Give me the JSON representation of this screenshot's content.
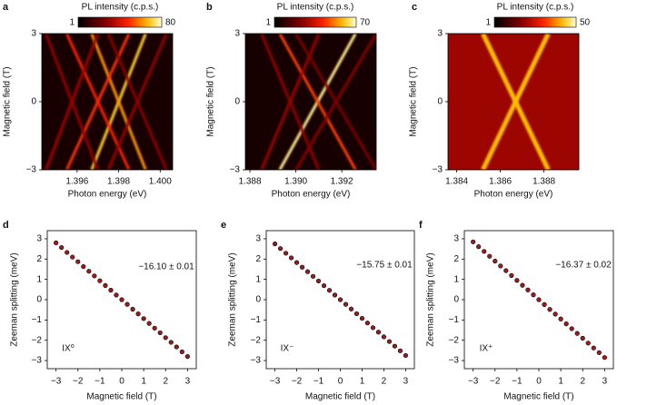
{
  "chart_data": [
    {
      "type": "heatmap",
      "panel": "a",
      "colorbar_label": "PL intensity (c.p.s.)",
      "clim": [
        1,
        80
      ],
      "clim_ticks": [
        1,
        80
      ],
      "xlabel": "Photon energy (eV)",
      "ylabel": "Magnetic field (T)",
      "xlim": [
        1.3943,
        1.4006
      ],
      "ylim": [
        -3,
        3
      ],
      "xticks": [
        1.396,
        1.398,
        {
          "value": 1.4,
          "label": "1.400"
        }
      ],
      "yticks": [
        {
          "value": -3,
          "label": "−3"
        },
        0,
        3
      ],
      "background": 6,
      "lines": [
        {
          "x": [
            1.3967,
            1.3993
          ],
          "intensity": 70
        },
        {
          "x": [
            1.3993,
            1.3967
          ],
          "intensity": 62
        },
        {
          "x": [
            1.3955,
            1.3985
          ],
          "intensity": 50
        },
        {
          "x": [
            1.3985,
            1.3955
          ],
          "intensity": 48
        },
        {
          "x": [
            1.3975,
            1.4003
          ],
          "intensity": 30
        },
        {
          "x": [
            1.4003,
            1.3975
          ],
          "intensity": 28
        },
        {
          "x": [
            1.3945,
            1.397
          ],
          "intensity": 32
        },
        {
          "x": [
            1.397,
            1.3945
          ],
          "intensity": 30
        }
      ]
    },
    {
      "type": "heatmap",
      "panel": "b",
      "colorbar_label": "PL intensity (c.p.s.)",
      "clim": [
        1,
        70
      ],
      "clim_ticks": [
        1,
        70
      ],
      "xlabel": "Photon energy (eV)",
      "ylabel": "Magnetic field (T)",
      "xlim": [
        1.3878,
        1.3935
      ],
      "ylim": [
        -3,
        3
      ],
      "xticks": [
        1.388,
        {
          "value": 1.39,
          "label": "1.390"
        },
        1.392
      ],
      "yticks": [
        {
          "value": -3,
          "label": "−3"
        },
        0,
        3
      ],
      "background": 5,
      "lines": [
        {
          "x": [
            1.3893,
            1.3926
          ],
          "intensity": 66
        },
        {
          "x": [
            1.3926,
            1.3893
          ],
          "intensity": 45
        },
        {
          "x": [
            1.3885,
            1.391
          ],
          "intensity": 28
        },
        {
          "x": [
            1.391,
            1.3885
          ],
          "intensity": 26
        },
        {
          "x": [
            1.39,
            1.3935
          ],
          "intensity": 24
        },
        {
          "x": [
            1.3935,
            1.39
          ],
          "intensity": 22
        }
      ]
    },
    {
      "type": "heatmap",
      "panel": "c",
      "colorbar_label": "PL intensity (c.p.s.)",
      "clim": [
        1,
        50
      ],
      "clim_ticks": [
        1,
        50
      ],
      "xlabel": "Photon energy (eV)",
      "ylabel": "Magnetic field (T)",
      "xlim": [
        1.3836,
        1.3896
      ],
      "ylim": [
        -3,
        3
      ],
      "xticks": [
        1.384,
        1.386,
        1.388
      ],
      "yticks": [
        {
          "value": -3,
          "label": "−3"
        },
        0,
        3
      ],
      "background": 20,
      "lines": [
        {
          "x": [
            1.3852,
            1.3882
          ],
          "intensity": 42
        },
        {
          "x": [
            1.3882,
            1.3852
          ],
          "intensity": 42
        }
      ]
    },
    {
      "type": "scatter",
      "panel": "d",
      "xlabel": "Magnetic field (T)",
      "ylabel": "Zeeman splitting (meV)",
      "annotation": "−16.10 ± 0.01",
      "label": "IX⁰",
      "color": "#9b1c1c",
      "xlim": [
        -3.4,
        3.4
      ],
      "ylim": [
        -3.4,
        3.4
      ],
      "xticks": [
        {
          "value": -3,
          "label": "−3"
        },
        {
          "value": -2,
          "label": "−2"
        },
        {
          "value": -1,
          "label": "−1"
        },
        0,
        1,
        2,
        3
      ],
      "yticks": [
        {
          "value": -3,
          "label": "−3"
        },
        {
          "value": -2,
          "label": "−2"
        },
        {
          "value": -1,
          "label": "−1"
        },
        0,
        1,
        2,
        3
      ],
      "x": [
        -3,
        -2.75,
        -2.5,
        -2.25,
        -2,
        -1.75,
        -1.5,
        -1.25,
        -1,
        -0.75,
        -0.5,
        -0.25,
        0,
        0.25,
        0.5,
        0.75,
        1,
        1.25,
        1.5,
        1.75,
        2,
        2.25,
        2.5,
        2.75,
        3
      ],
      "y": [
        2.8,
        2.57,
        2.33,
        2.1,
        1.87,
        1.63,
        1.4,
        1.17,
        0.93,
        0.7,
        0.47,
        0.23,
        0,
        -0.23,
        -0.47,
        -0.7,
        -0.93,
        -1.17,
        -1.4,
        -1.63,
        -1.87,
        -2.1,
        -2.33,
        -2.57,
        -2.8
      ]
    },
    {
      "type": "scatter",
      "panel": "e",
      "xlabel": "Magnetic field (T)",
      "ylabel": "Zeeman splitting (meV)",
      "annotation": "−15.75 ± 0.01",
      "label": "IX⁻",
      "color": "#9b1c1c",
      "xlim": [
        -3.4,
        3.4
      ],
      "ylim": [
        -3.4,
        3.4
      ],
      "xticks": [
        {
          "value": -3,
          "label": "−3"
        },
        {
          "value": -2,
          "label": "−2"
        },
        {
          "value": -1,
          "label": "−1"
        },
        0,
        1,
        2,
        3
      ],
      "yticks": [
        {
          "value": -3,
          "label": "−3"
        },
        {
          "value": -2,
          "label": "−2"
        },
        {
          "value": -1,
          "label": "−1"
        },
        0,
        1,
        2,
        3
      ],
      "x": [
        -3,
        -2.75,
        -2.5,
        -2.25,
        -2,
        -1.75,
        -1.5,
        -1.25,
        -1,
        -0.75,
        -0.5,
        -0.25,
        0,
        0.25,
        0.5,
        0.75,
        1,
        1.25,
        1.5,
        1.75,
        2,
        2.25,
        2.5,
        2.75,
        3
      ],
      "y": [
        2.75,
        2.52,
        2.29,
        2.06,
        1.83,
        1.6,
        1.38,
        1.15,
        0.92,
        0.69,
        0.46,
        0.23,
        0,
        -0.23,
        -0.46,
        -0.69,
        -0.92,
        -1.15,
        -1.38,
        -1.6,
        -1.83,
        -2.06,
        -2.29,
        -2.52,
        -2.75
      ]
    },
    {
      "type": "scatter",
      "panel": "f",
      "xlabel": "Magnetic field (T)",
      "ylabel": "Zeeman splitting (meV)",
      "annotation": "−16.37 ± 0.02",
      "label": "IX⁺",
      "color": "#9b1c1c",
      "xlim": [
        -3.4,
        3.4
      ],
      "ylim": [
        -3.4,
        3.4
      ],
      "xticks": [
        {
          "value": -3,
          "label": "−3"
        },
        {
          "value": -2,
          "label": "−2"
        },
        {
          "value": -1,
          "label": "−1"
        },
        0,
        1,
        2,
        3
      ],
      "yticks": [
        {
          "value": -3,
          "label": "−3"
        },
        {
          "value": -2,
          "label": "−2"
        },
        {
          "value": -1,
          "label": "−1"
        },
        0,
        1,
        2,
        3
      ],
      "x": [
        -3,
        -2.75,
        -2.5,
        -2.25,
        -2,
        -1.75,
        -1.5,
        -1.25,
        -1,
        -0.75,
        -0.5,
        -0.25,
        0,
        0.25,
        0.5,
        0.75,
        1,
        1.25,
        1.5,
        1.75,
        2,
        2.25,
        2.5,
        2.75,
        3
      ],
      "y": [
        2.85,
        2.61,
        2.38,
        2.14,
        1.9,
        1.66,
        1.43,
        1.19,
        0.95,
        0.71,
        0.48,
        0.24,
        0,
        -0.24,
        -0.48,
        -0.71,
        -0.95,
        -1.19,
        -1.43,
        -1.66,
        -1.9,
        -2.14,
        -2.38,
        -2.61,
        -2.85
      ]
    }
  ]
}
